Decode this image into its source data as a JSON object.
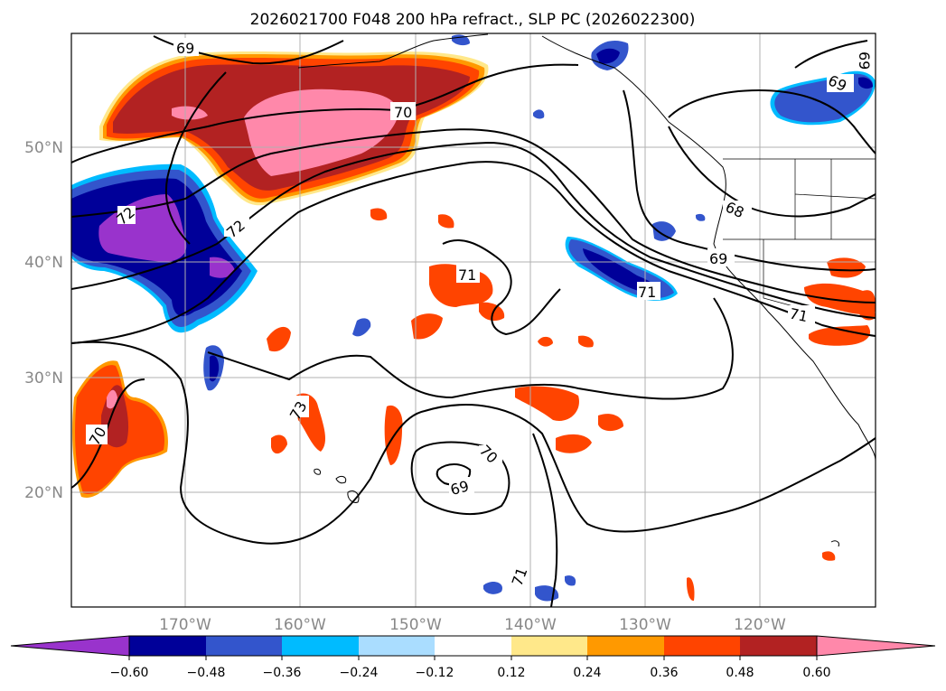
{
  "title": "2026021700 F048 200 hPa refract., SLP PC (2026022300)",
  "lat_labels": [
    "50°N",
    "40°N",
    "30°N",
    "20°N"
  ],
  "lon_labels": [
    "170°W",
    "160°W",
    "150°W",
    "140°W",
    "130°W",
    "120°W"
  ],
  "colorbar": {
    "ticks": [
      "−0.60",
      "−0.48",
      "−0.36",
      "−0.24",
      "−0.12",
      "0.12",
      "0.24",
      "0.36",
      "0.48",
      "0.60"
    ],
    "colors": [
      "#9933cc",
      "#000099",
      "#3355cc",
      "#00bbff",
      "#aaddff",
      "#ffffff",
      "#ffe88a",
      "#ff9900",
      "#ff4400",
      "#b22222",
      "#ff88aa"
    ]
  },
  "contour_labels": [
    "69",
    "70",
    "72",
    "72",
    "69",
    "68",
    "71",
    "71",
    "71",
    "73",
    "70",
    "70",
    "69",
    "71",
    "69",
    "69"
  ],
  "colors": {
    "grid": "#b0b0b0",
    "axis_label": "#888888",
    "contour": "#000000"
  }
}
